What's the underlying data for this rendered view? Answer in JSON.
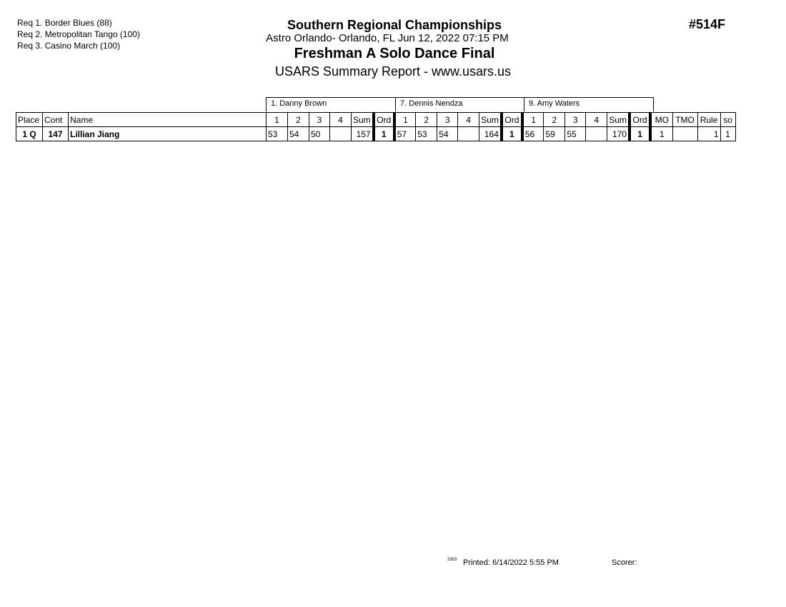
{
  "requirements": [
    "Req  1.  Border Blues (88)",
    "Req  2.  Metropolitan Tango (100)",
    "Req  3.  Casino March (100)"
  ],
  "header": {
    "title": "Southern Regional Championships",
    "venue": "Astro Orlando- Orlando, FL  Jun 12, 2022  07:15 PM",
    "event": "Freshman A Solo Dance Final",
    "report": "USARS Summary Report - www.usars.us",
    "event_number": "#514F"
  },
  "judges": [
    "1.  Danny  Brown",
    "7.  Dennis Nendza",
    "9.  Amy  Waters"
  ],
  "columns": {
    "place": "Place",
    "cont": "Cont",
    "name": "Name",
    "scores": [
      "1",
      "2",
      "3",
      "4"
    ],
    "sum": "Sum",
    "ord": "Ord",
    "mo": "MO",
    "tmo": "TMO",
    "rule": "Rule",
    "so": "so"
  },
  "rows": [
    {
      "place": "1 Q",
      "cont": "147",
      "name": "Lillian Jiang",
      "judges": [
        {
          "scores": [
            "53",
            "54",
            "50",
            ""
          ],
          "sum": "157",
          "ord": "1"
        },
        {
          "scores": [
            "57",
            "53",
            "54",
            ""
          ],
          "sum": "164",
          "ord": "1"
        },
        {
          "scores": [
            "56",
            "59",
            "55",
            ""
          ],
          "sum": "170",
          "ord": "1"
        }
      ],
      "mo": "1",
      "tmo": "",
      "rule": "1",
      "so": "1"
    }
  ],
  "footer": {
    "code": "3303",
    "printed": "Printed:  6/14/2022  5:55 PM",
    "scorer": "Scorer:"
  }
}
